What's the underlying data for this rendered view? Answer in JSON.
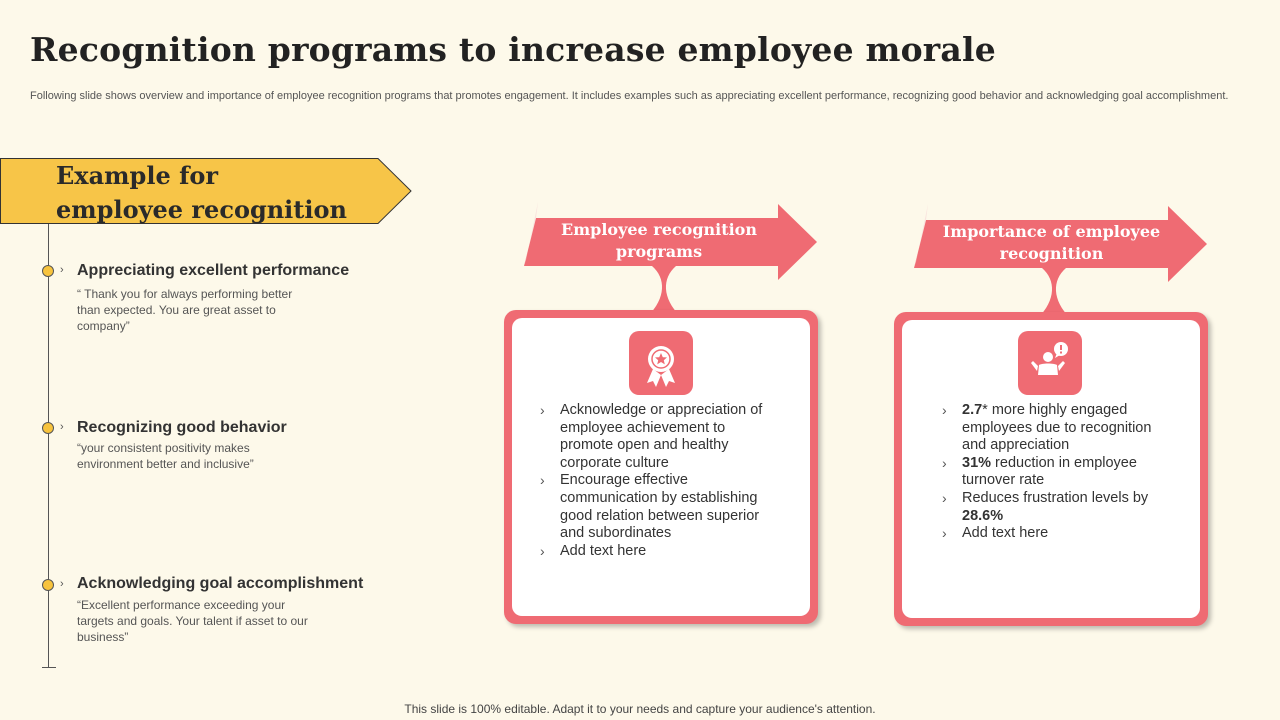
{
  "title": "Recognition programs to increase employee morale",
  "subtitle": "Following slide shows overview and importance of employee recognition programs that promotes engagement. It includes examples such as appreciating excellent performance, recognizing good behavior and acknowledging goal accomplishment.",
  "banner": {
    "text": "Example for\nemployee recognition",
    "color": "#f7c548"
  },
  "timeline": [
    {
      "heading": "Appreciating excellent performance",
      "quote": "“ Thank  you for always performing better than expected. You are great asset to company”"
    },
    {
      "heading": "Recognizing good behavior",
      "quote": "“your consistent positivity makes environment  better and inclusive”"
    },
    {
      "heading": "Acknowledging goal accomplishment",
      "quote": "“Excellent performance  exceeding your targets and goals.  Your talent if asset to our business”"
    }
  ],
  "cards": [
    {
      "title": "Employee recognition programs",
      "icon": "award-ribbon-icon",
      "bullets": [
        {
          "pre": "",
          "bold": "",
          "post": "Acknowledge or appreciation of employee achievement to promote open and healthy corporate culture"
        },
        {
          "pre": "",
          "bold": "",
          "post": "Encourage effective communication by establishing good relation between superior and subordinates"
        },
        {
          "pre": "",
          "bold": "",
          "post": "Add text here"
        }
      ]
    },
    {
      "title": "Importance of employee recognition",
      "icon": "person-alert-icon",
      "bullets": [
        {
          "pre": "",
          "bold": "2.7",
          "post": "* more highly engaged employees due to recognition and appreciation"
        },
        {
          "pre": "",
          "bold": "31%",
          "post": " reduction in employee turnover rate"
        },
        {
          "pre": "Reduces frustration levels by ",
          "bold": "28.6%",
          "post": ""
        },
        {
          "pre": "",
          "bold": "",
          "post": "Add text here"
        }
      ]
    }
  ],
  "accent_color": "#ef6b73",
  "footer": "This slide is 100% editable. Adapt it to your needs and capture your audience's attention."
}
